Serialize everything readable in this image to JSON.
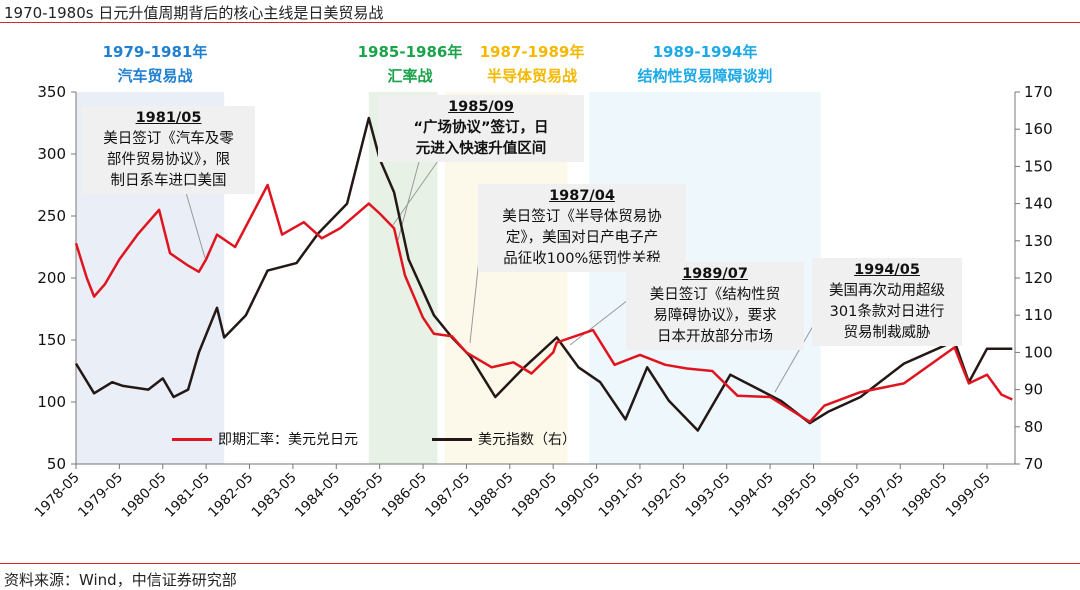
{
  "title": "1970-1980s 日元升值周期背后的核心主线是日美贸易战",
  "source": "资料来源：Wind，中信证券研究部",
  "periods": [
    {
      "years": "1979-1981年",
      "name": "汽车贸易战",
      "color": "#1f7fd1",
      "shade": "#e9eef7",
      "from": "1978-05",
      "to": "1981-10"
    },
    {
      "years": "1985-1986年",
      "name": "汇率战",
      "color": "#1aa34a",
      "shade": "#e8f1e6",
      "from": "1985-02",
      "to": "1986-09"
    },
    {
      "years": "1987-1989年",
      "name": "半导体贸易战",
      "color": "#f5b800",
      "shade": "#fdf9ea",
      "from": "1986-11",
      "to": "1989-09"
    },
    {
      "years": "1989-1994年",
      "name": "结构性贸易障碍谈判",
      "color": "#1ca9e6",
      "shade": "#eef7fc",
      "from": "1990-03",
      "to": "1995-07"
    }
  ],
  "annotations": [
    {
      "date": "1981/05",
      "lines": [
        "美日签订《汽车及零",
        "部件贸易协议》，限",
        "制日系车进口美国"
      ]
    },
    {
      "date": "1985/09",
      "lines": [
        "“广场协议”签订，日",
        "元进入快速升值区间"
      ]
    },
    {
      "date": "1987/04",
      "lines": [
        "美日签订《半导体贸易协",
        "定》，美国对日产电子产",
        "品征收100%惩罚性关税"
      ]
    },
    {
      "date": "1989/07",
      "lines": [
        "美日签订《结构性贸",
        "易障碍协议》，要求",
        "日本开放部分市场"
      ]
    },
    {
      "date": "1994/05",
      "lines": [
        "美国再次动用超级",
        "301条款对日进行",
        "贸易制裁威胁"
      ]
    }
  ],
  "chart_data": {
    "type": "line",
    "x_ticks": [
      "1978-05",
      "1979-05",
      "1980-05",
      "1981-05",
      "1982-05",
      "1983-05",
      "1984-05",
      "1985-05",
      "1986-05",
      "1987-05",
      "1988-05",
      "1989-05",
      "1990-05",
      "1991-05",
      "1992-05",
      "1993-05",
      "1994-05",
      "1995-05",
      "1996-05",
      "1997-05",
      "1998-05",
      "1999-05"
    ],
    "y_left": {
      "min": 50,
      "max": 350,
      "ticks": [
        50,
        100,
        150,
        200,
        250,
        300,
        350
      ]
    },
    "y_right": {
      "min": 70,
      "max": 170,
      "ticks": [
        70,
        80,
        90,
        100,
        110,
        120,
        130,
        140,
        150,
        160,
        170
      ]
    },
    "legend_position": "bottom-left",
    "series": [
      {
        "name": "即期汇率：美元兑日元",
        "axis": "left",
        "color": "#e0141e",
        "points": [
          [
            "1978-05",
            228
          ],
          [
            "1978-08",
            200
          ],
          [
            "1978-10",
            185
          ],
          [
            "1979-01",
            195
          ],
          [
            "1979-05",
            215
          ],
          [
            "1979-10",
            235
          ],
          [
            "1980-04",
            255
          ],
          [
            "1980-07",
            220
          ],
          [
            "1980-12",
            210
          ],
          [
            "1981-03",
            205
          ],
          [
            "1981-05",
            215
          ],
          [
            "1981-08",
            235
          ],
          [
            "1982-01",
            225
          ],
          [
            "1982-10",
            275
          ],
          [
            "1983-02",
            235
          ],
          [
            "1983-08",
            245
          ],
          [
            "1984-01",
            232
          ],
          [
            "1984-06",
            240
          ],
          [
            "1985-02",
            260
          ],
          [
            "1985-05",
            252
          ],
          [
            "1985-09",
            240
          ],
          [
            "1985-12",
            202
          ],
          [
            "1986-05",
            168
          ],
          [
            "1986-08",
            155
          ],
          [
            "1987-01",
            153
          ],
          [
            "1987-05",
            140
          ],
          [
            "1987-12",
            128
          ],
          [
            "1988-06",
            132
          ],
          [
            "1988-11",
            123
          ],
          [
            "1989-05",
            140
          ],
          [
            "1989-06",
            148
          ],
          [
            "1990-04",
            158
          ],
          [
            "1990-10",
            130
          ],
          [
            "1991-05",
            138
          ],
          [
            "1991-12",
            130
          ],
          [
            "1992-06",
            127
          ],
          [
            "1993-01",
            125
          ],
          [
            "1993-08",
            105
          ],
          [
            "1994-05",
            104
          ],
          [
            "1995-04",
            84
          ],
          [
            "1995-08",
            97
          ],
          [
            "1996-06",
            108
          ],
          [
            "1997-06",
            115
          ],
          [
            "1998-08",
            144
          ],
          [
            "1998-12",
            115
          ],
          [
            "1999-05",
            122
          ],
          [
            "1999-09",
            106
          ],
          [
            "1999-12",
            102
          ]
        ]
      },
      {
        "name": "美元指数（右）",
        "axis": "right",
        "color": "#231815",
        "points": [
          [
            "1978-05",
            97
          ],
          [
            "1978-10",
            89
          ],
          [
            "1979-03",
            92
          ],
          [
            "1979-06",
            91
          ],
          [
            "1980-01",
            90
          ],
          [
            "1980-05",
            93
          ],
          [
            "1980-08",
            88
          ],
          [
            "1980-12",
            90
          ],
          [
            "1981-03",
            100
          ],
          [
            "1981-08",
            112
          ],
          [
            "1981-10",
            104
          ],
          [
            "1982-04",
            110
          ],
          [
            "1982-10",
            122
          ],
          [
            "1983-06",
            124
          ],
          [
            "1983-12",
            132
          ],
          [
            "1984-08",
            140
          ],
          [
            "1985-02",
            163
          ],
          [
            "1985-05",
            152
          ],
          [
            "1985-09",
            143
          ],
          [
            "1986-01",
            125
          ],
          [
            "1986-08",
            110
          ],
          [
            "1987-01",
            104
          ],
          [
            "1987-06",
            99
          ],
          [
            "1988-01",
            88
          ],
          [
            "1988-06",
            93
          ],
          [
            "1988-09",
            96
          ],
          [
            "1989-06",
            104
          ],
          [
            "1989-12",
            96
          ],
          [
            "1990-06",
            92
          ],
          [
            "1991-01",
            82
          ],
          [
            "1991-07",
            96
          ],
          [
            "1992-01",
            87
          ],
          [
            "1992-09",
            79
          ],
          [
            "1993-06",
            94
          ],
          [
            "1993-12",
            91
          ],
          [
            "1994-08",
            87
          ],
          [
            "1995-04",
            81
          ],
          [
            "1995-09",
            84
          ],
          [
            "1996-06",
            88
          ],
          [
            "1997-06",
            97
          ],
          [
            "1998-08",
            103
          ],
          [
            "1998-12",
            92
          ],
          [
            "1999-05",
            101
          ],
          [
            "1999-12",
            101
          ]
        ]
      }
    ]
  }
}
